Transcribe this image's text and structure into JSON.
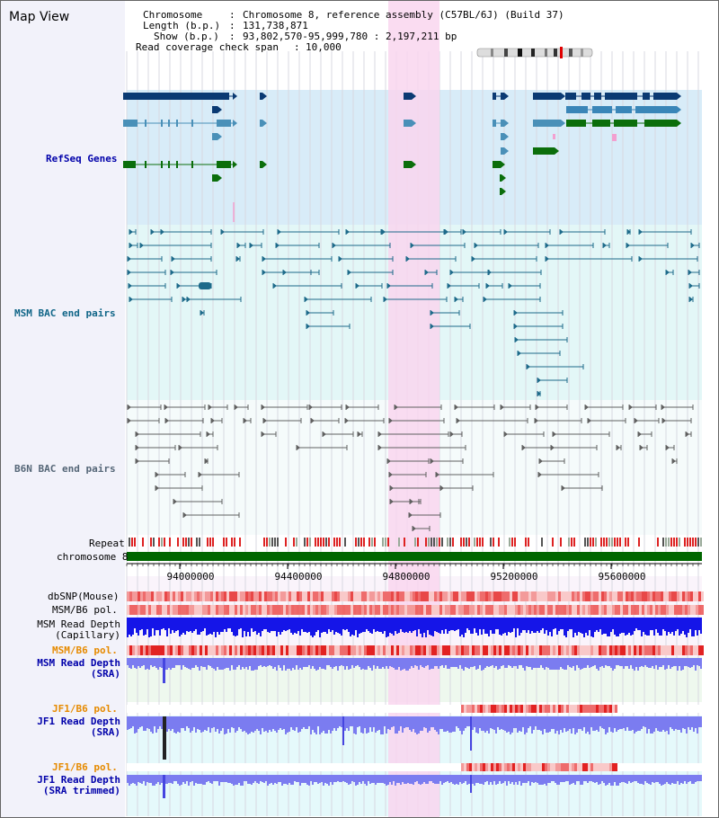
{
  "page_title": "Map View",
  "info": {
    "line1_label": "Chromosome",
    "line1_value": "Chromosome 8, reference assembly (C57BL/6J) (Build 37)",
    "line2_label": "Length (b.p.)",
    "line2_value": "131,738,871",
    "line3_label": "Show (b.p.)",
    "line3_value": "93,802,570-95,999,780 : 2,197,211 bp",
    "line4_label": "Read coverage check span",
    "line4_value": "10,000"
  },
  "tracks": {
    "refseq": "RefSeq Genes",
    "msm_bac": "MSM BAC end pairs",
    "b6n_bac": "B6N BAC end pairs",
    "repeat": "Repeat",
    "chromosome": "chromosome 8",
    "dbsnp": "dbSNP(Mouse)",
    "msm_b6_pol_1": "MSM/B6 pol.",
    "msm_read_depth_cap": "MSM Read Depth\n(Capillary)",
    "msm_b6_pol_2": "MSM/B6 pol.",
    "msm_read_depth_sra": "MSM Read Depth\n(SRA)",
    "jf1_b6_pol_1": "JF1/B6 pol.",
    "jf1_read_depth_sra": "JF1 Read Depth\n(SRA)",
    "jf1_b6_pol_2": "JF1/B6 pol.",
    "jf1_read_depth_trimmed": "JF1 Read Depth\n(SRA trimmed)"
  },
  "axis": {
    "ticks": [
      "94000000",
      "94400000",
      "94800000",
      "95200000",
      "95600000"
    ]
  },
  "colors": {
    "refseq_bg": "#d8ecf8",
    "msm_bg": "#e3f7f7",
    "b6n_bg": "#f5fbfb",
    "highlight": "#f9d6ef",
    "gene_dark": "#0b3a73",
    "gene_mid": "#4a90b8",
    "gene_green": "#0b6e0b",
    "msm_line": "#1d6a8a",
    "b6n_line": "#606060",
    "chrom_bar": "#006600",
    "depth_blue": "#1111dd",
    "depth_purple": "#7b7cf0",
    "pol_red": "#e32222",
    "label_blue": "#0000aa",
    "label_orange": "#e68a00",
    "label_teal": "#116688"
  }
}
